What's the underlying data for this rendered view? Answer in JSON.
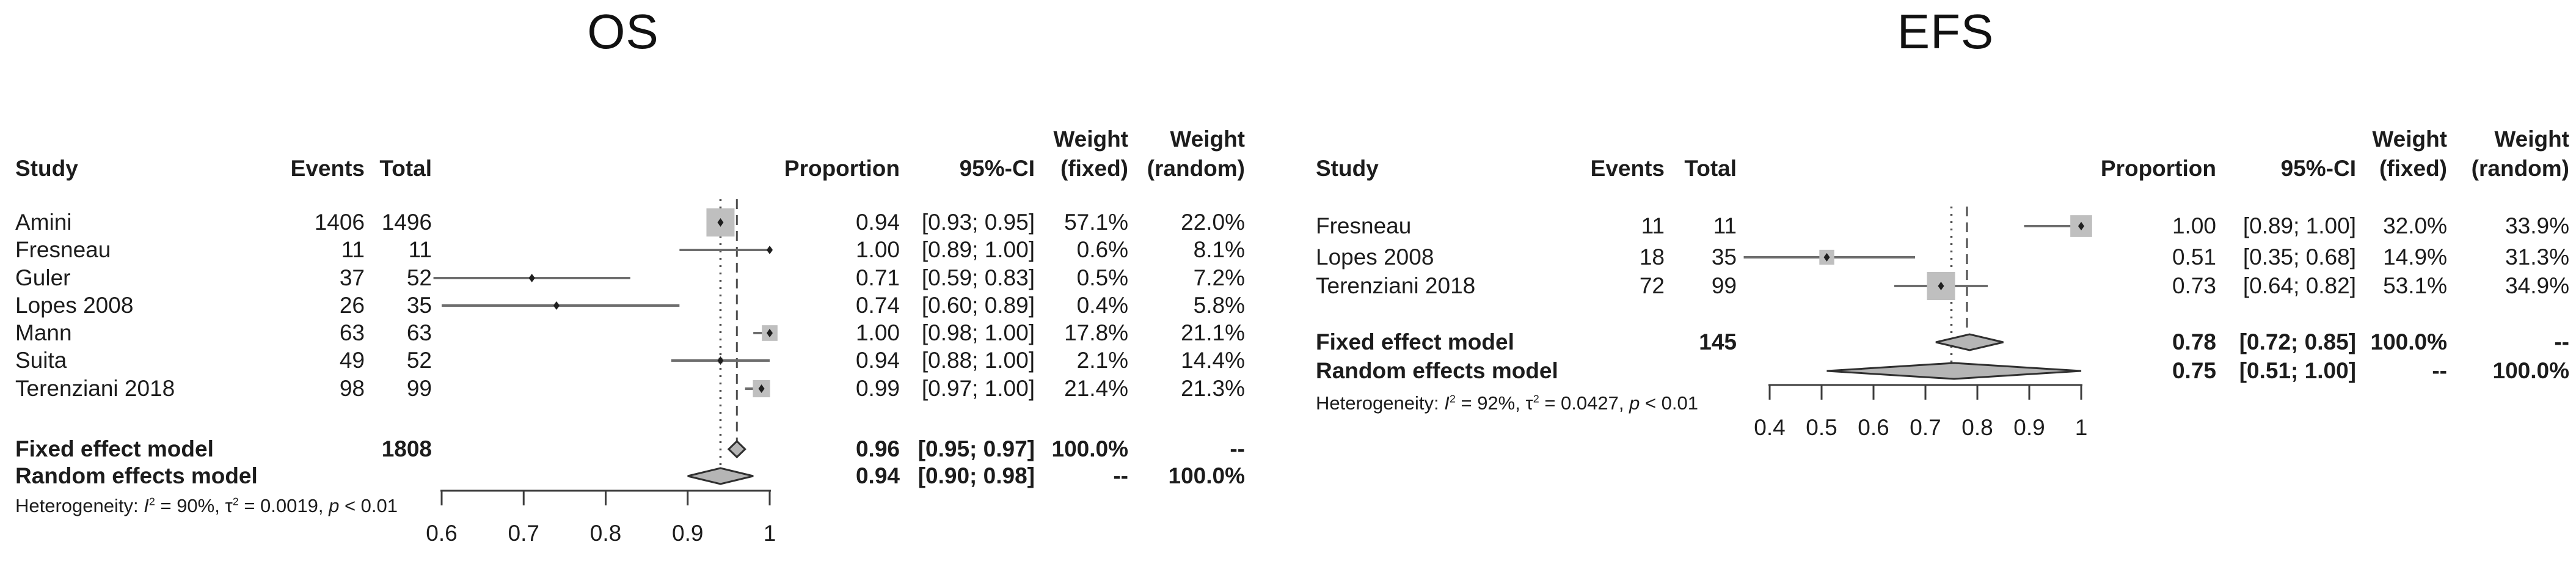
{
  "figure": {
    "background": "#ffffff",
    "text_color": "#1c1c1c",
    "square_color": "#bfbfbf",
    "diamond_color": "#b5b5b5",
    "line_color": "#6d6d6d"
  },
  "chart_data": [
    {
      "type": "forest",
      "title": "OS",
      "headers": {
        "study": "Study",
        "events": "Events",
        "total": "Total",
        "proportion": "Proportion",
        "ci": "95%-CI",
        "weight": "Weight",
        "fixed": "(fixed)",
        "random": "(random)"
      },
      "studies": [
        {
          "name": "Amini",
          "events": "1406",
          "total": "1496",
          "proportion": 0.94,
          "prop_text": "0.94",
          "ci_lo": 0.93,
          "ci_hi": 0.95,
          "ci_text": "[0.93; 0.95]",
          "weight_fixed": "57.1%",
          "weight_random": "22.0%"
        },
        {
          "name": "Fresneau",
          "events": "11",
          "total": "11",
          "proportion": 1.0,
          "prop_text": "1.00",
          "ci_lo": 0.89,
          "ci_hi": 1.0,
          "ci_text": "[0.89; 1.00]",
          "weight_fixed": "0.6%",
          "weight_random": "8.1%"
        },
        {
          "name": "Guler",
          "events": "37",
          "total": "52",
          "proportion": 0.71,
          "prop_text": "0.71",
          "ci_lo": 0.59,
          "ci_hi": 0.83,
          "ci_text": "[0.59; 0.83]",
          "weight_fixed": "0.5%",
          "weight_random": "7.2%"
        },
        {
          "name": "Lopes 2008",
          "events": "26",
          "total": "35",
          "proportion": 0.74,
          "prop_text": "0.74",
          "ci_lo": 0.6,
          "ci_hi": 0.89,
          "ci_text": "[0.60; 0.89]",
          "weight_fixed": "0.4%",
          "weight_random": "5.8%"
        },
        {
          "name": "Mann",
          "events": "63",
          "total": "63",
          "proportion": 1.0,
          "prop_text": "1.00",
          "ci_lo": 0.98,
          "ci_hi": 1.0,
          "ci_text": "[0.98; 1.00]",
          "weight_fixed": "17.8%",
          "weight_random": "21.1%"
        },
        {
          "name": "Suita",
          "events": "49",
          "total": "52",
          "proportion": 0.94,
          "prop_text": "0.94",
          "ci_lo": 0.88,
          "ci_hi": 1.0,
          "ci_text": "[0.88; 1.00]",
          "weight_fixed": "2.1%",
          "weight_random": "14.4%"
        },
        {
          "name": "Terenziani 2018",
          "events": "98",
          "total": "99",
          "proportion": 0.99,
          "prop_text": "0.99",
          "ci_lo": 0.97,
          "ci_hi": 1.0,
          "ci_text": "[0.97; 1.00]",
          "weight_fixed": "21.4%",
          "weight_random": "21.3%"
        }
      ],
      "summary": [
        {
          "kind": "fixed",
          "name": "Fixed effect model",
          "total": "1808",
          "proportion": 0.96,
          "prop_text": "0.96",
          "ci_lo": 0.95,
          "ci_hi": 0.97,
          "ci_text": "[0.95; 0.97]",
          "weight_fixed": "100.0%",
          "weight_random": "--"
        },
        {
          "kind": "random",
          "name": "Random effects model",
          "total": "",
          "proportion": 0.94,
          "prop_text": "0.94",
          "ci_lo": 0.9,
          "ci_hi": 0.98,
          "ci_text": "[0.90; 0.98]",
          "weight_fixed": "--",
          "weight_random": "100.0%"
        }
      ],
      "het_segments": [
        {
          "t": "Heterogeneity: "
        },
        {
          "t": "I",
          "s": "i"
        },
        {
          "t": "2",
          "s": "sup"
        },
        {
          "t": " = 90%, "
        },
        {
          "t": "τ"
        },
        {
          "t": "2",
          "s": "sup"
        },
        {
          "t": " = 0.0019, "
        },
        {
          "t": "p",
          "s": "i"
        },
        {
          "t": " < 0.01"
        }
      ],
      "axis": {
        "min": 0.6,
        "max": 1.0,
        "ticks": [
          {
            "v": 0.6,
            "label": "0.6"
          },
          {
            "v": 0.7,
            "label": "0.7"
          },
          {
            "v": 0.8,
            "label": "0.8"
          },
          {
            "v": 0.9,
            "label": "0.9"
          },
          {
            "v": 1.0,
            "label": "1"
          }
        ]
      }
    },
    {
      "type": "forest",
      "title": "EFS",
      "headers": {
        "study": "Study",
        "events": "Events",
        "total": "Total",
        "proportion": "Proportion",
        "ci": "95%-CI",
        "weight": "Weight",
        "fixed": "(fixed)",
        "random": "(random)"
      },
      "studies": [
        {
          "name": "Fresneau",
          "events": "11",
          "total": "11",
          "proportion": 1.0,
          "prop_text": "1.00",
          "ci_lo": 0.89,
          "ci_hi": 1.0,
          "ci_text": "[0.89; 1.00]",
          "weight_fixed": "32.0%",
          "weight_random": "33.9%"
        },
        {
          "name": "Lopes 2008",
          "events": "18",
          "total": "35",
          "proportion": 0.51,
          "prop_text": "0.51",
          "ci_lo": 0.35,
          "ci_hi": 0.68,
          "ci_text": "[0.35; 0.68]",
          "weight_fixed": "14.9%",
          "weight_random": "31.3%"
        },
        {
          "name": "Terenziani 2018",
          "events": "72",
          "total": "99",
          "proportion": 0.73,
          "prop_text": "0.73",
          "ci_lo": 0.64,
          "ci_hi": 0.82,
          "ci_text": "[0.64; 0.82]",
          "weight_fixed": "53.1%",
          "weight_random": "34.9%"
        }
      ],
      "summary": [
        {
          "kind": "fixed",
          "name": "Fixed effect model",
          "total": "145",
          "proportion": 0.78,
          "prop_text": "0.78",
          "ci_lo": 0.72,
          "ci_hi": 0.85,
          "ci_text": "[0.72; 0.85]",
          "weight_fixed": "100.0%",
          "weight_random": "--"
        },
        {
          "kind": "random",
          "name": "Random effects model",
          "total": "",
          "proportion": 0.75,
          "prop_text": "0.75",
          "ci_lo": 0.51,
          "ci_hi": 1.0,
          "ci_text": "[0.51; 1.00]",
          "weight_fixed": "--",
          "weight_random": "100.0%"
        }
      ],
      "het_segments": [
        {
          "t": "Heterogeneity: "
        },
        {
          "t": "I",
          "s": "i"
        },
        {
          "t": "2",
          "s": "sup"
        },
        {
          "t": " = 92%, "
        },
        {
          "t": "τ"
        },
        {
          "t": "2",
          "s": "sup"
        },
        {
          "t": " = 0.0427, "
        },
        {
          "t": "p",
          "s": "i"
        },
        {
          "t": " < 0.01"
        }
      ],
      "axis": {
        "min": 0.4,
        "max": 1.0,
        "ticks": [
          {
            "v": 0.4,
            "label": "0.4"
          },
          {
            "v": 0.5,
            "label": "0.5"
          },
          {
            "v": 0.6,
            "label": "0.6"
          },
          {
            "v": 0.7,
            "label": "0.7"
          },
          {
            "v": 0.8,
            "label": "0.8"
          },
          {
            "v": 0.9,
            "label": "0.9"
          },
          {
            "v": 1.0,
            "label": "1"
          }
        ]
      }
    }
  ]
}
